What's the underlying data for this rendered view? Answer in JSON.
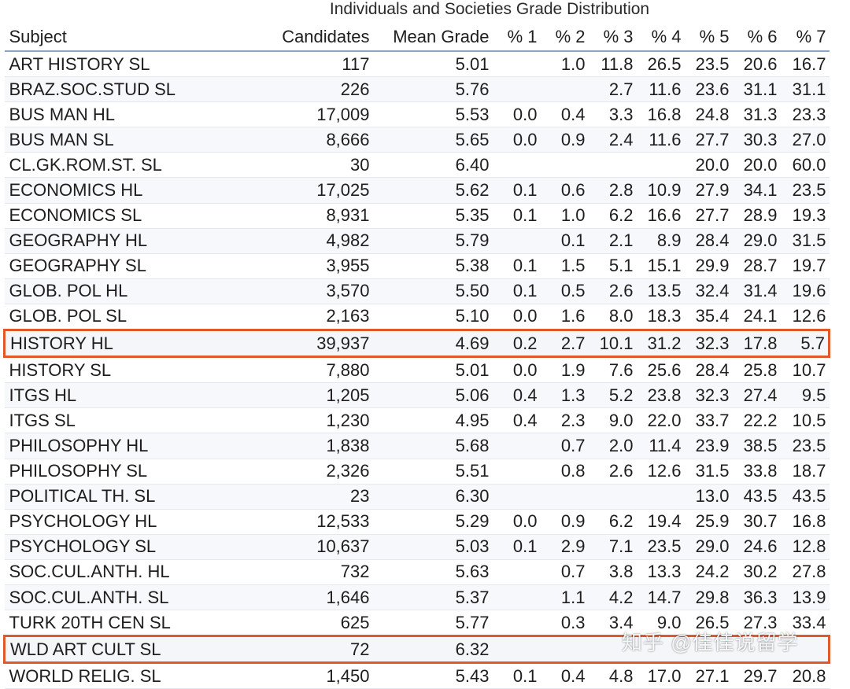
{
  "title": "Individuals and Societies Grade Distribution",
  "columns": [
    "Subject",
    "Candidates",
    "Mean Grade",
    "% 1",
    "% 2",
    "% 3",
    "% 4",
    "% 5",
    "% 6",
    "% 7"
  ],
  "rows": [
    {
      "subject": "ART HISTORY SL",
      "candidates": "117",
      "mean": "5.01",
      "p1": "",
      "p2": "1.0",
      "p3": "11.8",
      "p4": "26.5",
      "p5": "23.5",
      "p6": "20.6",
      "p7": "16.7",
      "highlighted": false
    },
    {
      "subject": "BRAZ.SOC.STUD SL",
      "candidates": "226",
      "mean": "5.76",
      "p1": "",
      "p2": "",
      "p3": "2.7",
      "p4": "11.6",
      "p5": "23.6",
      "p6": "31.1",
      "p7": "31.1",
      "highlighted": false
    },
    {
      "subject": "BUS MAN HL",
      "candidates": "17,009",
      "mean": "5.53",
      "p1": "0.0",
      "p2": "0.4",
      "p3": "3.3",
      "p4": "16.8",
      "p5": "24.8",
      "p6": "31.3",
      "p7": "23.3",
      "highlighted": false
    },
    {
      "subject": "BUS MAN SL",
      "candidates": "8,666",
      "mean": "5.65",
      "p1": "0.0",
      "p2": "0.9",
      "p3": "2.4",
      "p4": "11.6",
      "p5": "27.7",
      "p6": "30.3",
      "p7": "27.0",
      "highlighted": false
    },
    {
      "subject": "CL.GK.ROM.ST. SL",
      "candidates": "30",
      "mean": "6.40",
      "p1": "",
      "p2": "",
      "p3": "",
      "p4": "",
      "p5": "20.0",
      "p6": "20.0",
      "p7": "60.0",
      "highlighted": false
    },
    {
      "subject": "ECONOMICS HL",
      "candidates": "17,025",
      "mean": "5.62",
      "p1": "0.1",
      "p2": "0.6",
      "p3": "2.8",
      "p4": "10.9",
      "p5": "27.9",
      "p6": "34.1",
      "p7": "23.5",
      "highlighted": false
    },
    {
      "subject": "ECONOMICS SL",
      "candidates": "8,931",
      "mean": "5.35",
      "p1": "0.1",
      "p2": "1.0",
      "p3": "6.2",
      "p4": "16.6",
      "p5": "27.7",
      "p6": "28.9",
      "p7": "19.3",
      "highlighted": false
    },
    {
      "subject": "GEOGRAPHY HL",
      "candidates": "4,982",
      "mean": "5.79",
      "p1": "",
      "p2": "0.1",
      "p3": "2.1",
      "p4": "8.9",
      "p5": "28.4",
      "p6": "29.0",
      "p7": "31.5",
      "highlighted": false
    },
    {
      "subject": "GEOGRAPHY SL",
      "candidates": "3,955",
      "mean": "5.38",
      "p1": "0.1",
      "p2": "1.5",
      "p3": "5.1",
      "p4": "15.1",
      "p5": "29.9",
      "p6": "28.7",
      "p7": "19.7",
      "highlighted": false
    },
    {
      "subject": "GLOB. POL HL",
      "candidates": "3,570",
      "mean": "5.50",
      "p1": "0.1",
      "p2": "0.5",
      "p3": "2.6",
      "p4": "13.5",
      "p5": "32.4",
      "p6": "31.4",
      "p7": "19.6",
      "highlighted": false
    },
    {
      "subject": "GLOB. POL SL",
      "candidates": "2,163",
      "mean": "5.10",
      "p1": "0.0",
      "p2": "1.6",
      "p3": "8.0",
      "p4": "18.3",
      "p5": "35.4",
      "p6": "24.1",
      "p7": "12.6",
      "highlighted": false
    },
    {
      "subject": "HISTORY HL",
      "candidates": "39,937",
      "mean": "4.69",
      "p1": "0.2",
      "p2": "2.7",
      "p3": "10.1",
      "p4": "31.2",
      "p5": "32.3",
      "p6": "17.8",
      "p7": "5.7",
      "highlighted": true
    },
    {
      "subject": "HISTORY SL",
      "candidates": "7,880",
      "mean": "5.01",
      "p1": "0.0",
      "p2": "1.9",
      "p3": "7.6",
      "p4": "25.6",
      "p5": "28.4",
      "p6": "25.8",
      "p7": "10.7",
      "highlighted": false
    },
    {
      "subject": "ITGS HL",
      "candidates": "1,205",
      "mean": "5.06",
      "p1": "0.4",
      "p2": "1.3",
      "p3": "5.2",
      "p4": "23.8",
      "p5": "32.3",
      "p6": "27.4",
      "p7": "9.5",
      "highlighted": false
    },
    {
      "subject": "ITGS SL",
      "candidates": "1,230",
      "mean": "4.95",
      "p1": "0.4",
      "p2": "2.3",
      "p3": "9.0",
      "p4": "22.0",
      "p5": "33.7",
      "p6": "22.2",
      "p7": "10.5",
      "highlighted": false
    },
    {
      "subject": "PHILOSOPHY HL",
      "candidates": "1,838",
      "mean": "5.68",
      "p1": "",
      "p2": "0.7",
      "p3": "2.0",
      "p4": "11.4",
      "p5": "23.9",
      "p6": "38.5",
      "p7": "23.5",
      "highlighted": false
    },
    {
      "subject": "PHILOSOPHY SL",
      "candidates": "2,326",
      "mean": "5.51",
      "p1": "",
      "p2": "0.8",
      "p3": "2.6",
      "p4": "12.6",
      "p5": "31.5",
      "p6": "33.8",
      "p7": "18.7",
      "highlighted": false
    },
    {
      "subject": "POLITICAL TH. SL",
      "candidates": "23",
      "mean": "6.30",
      "p1": "",
      "p2": "",
      "p3": "",
      "p4": "",
      "p5": "13.0",
      "p6": "43.5",
      "p7": "43.5",
      "highlighted": false
    },
    {
      "subject": "PSYCHOLOGY HL",
      "candidates": "12,533",
      "mean": "5.29",
      "p1": "0.0",
      "p2": "0.9",
      "p3": "6.2",
      "p4": "19.4",
      "p5": "25.9",
      "p6": "30.7",
      "p7": "16.8",
      "highlighted": false
    },
    {
      "subject": "PSYCHOLOGY SL",
      "candidates": "10,637",
      "mean": "5.03",
      "p1": "0.1",
      "p2": "2.9",
      "p3": "7.1",
      "p4": "23.5",
      "p5": "29.0",
      "p6": "24.6",
      "p7": "12.8",
      "highlighted": false
    },
    {
      "subject": "SOC.CUL.ANTH. HL",
      "candidates": "732",
      "mean": "5.63",
      "p1": "",
      "p2": "0.7",
      "p3": "3.8",
      "p4": "13.3",
      "p5": "24.2",
      "p6": "30.2",
      "p7": "27.8",
      "highlighted": false
    },
    {
      "subject": "SOC.CUL.ANTH. SL",
      "candidates": "1,646",
      "mean": "5.37",
      "p1": "",
      "p2": "1.1",
      "p3": "4.2",
      "p4": "14.7",
      "p5": "29.8",
      "p6": "36.3",
      "p7": "13.9",
      "highlighted": false
    },
    {
      "subject": "TURK 20TH CEN SL",
      "candidates": "625",
      "mean": "5.77",
      "p1": "",
      "p2": "0.3",
      "p3": "3.4",
      "p4": "9.0",
      "p5": "26.5",
      "p6": "27.3",
      "p7": "33.4",
      "highlighted": false
    },
    {
      "subject": "WLD ART CULT SL",
      "candidates": "72",
      "mean": "6.32",
      "p1": "",
      "p2": "",
      "p3": "",
      "p4": "",
      "p5": "",
      "p6": "",
      "p7": "",
      "highlighted": true
    },
    {
      "subject": "WORLD RELIG. SL",
      "candidates": "1,450",
      "mean": "5.43",
      "p1": "0.1",
      "p2": "0.4",
      "p3": "4.8",
      "p4": "17.0",
      "p5": "27.1",
      "p6": "29.7",
      "p7": "20.8",
      "highlighted": false
    }
  ],
  "watermark": "知乎 @佳佳说留学",
  "colors": {
    "highlight_border": "#e0592a",
    "header_rule": "#8ea3c8"
  }
}
